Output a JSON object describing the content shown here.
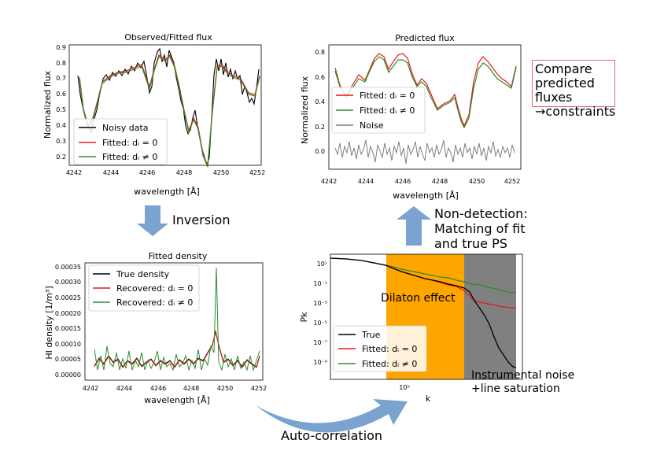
{
  "colors": {
    "noisy": "#000000",
    "fitted0": "#e41a1c",
    "fittedN": "#2e8b2e",
    "noise": "#7f7f7f",
    "orange": "#ffa500",
    "gray": "#808080",
    "arrow": "#7ba3cf"
  },
  "labels": {
    "inversion": "Inversion",
    "nondetect_line1": "Non-detection:",
    "nondetect_line2": "Matching of fit",
    "nondetect_line3": "and true PS",
    "compare_line1": "Compare",
    "compare_line2": "predicted fluxes",
    "compare_line3": "→constraints",
    "autocorr": "Auto-correlation"
  },
  "observed": {
    "title": "Observed/Fitted flux",
    "xlabel": "wavelength [Å]",
    "ylabel": "Normalized flux",
    "xticks": [
      "4242",
      "4244",
      "4246",
      "4248",
      "4250",
      "4252"
    ],
    "yticks": [
      "0.9",
      "0.8",
      "0.7",
      "0.6",
      "0.5",
      "0.4",
      "0.3",
      "0.2"
    ],
    "legend": [
      "Noisy data",
      "Fitted: dᵢ = 0",
      "Fitted: dᵢ ≠ 0"
    ]
  },
  "predicted": {
    "title": "Predicted flux",
    "xlabel": "wavelength [Å]",
    "ylabel": "Normalized flux",
    "xticks": [
      "4242",
      "4244",
      "4246",
      "4248",
      "4250",
      "4252"
    ],
    "yticks": [
      "0.8",
      "0.6",
      "0.4",
      "0.2",
      "0.0"
    ],
    "legend": [
      "Fitted: dᵢ = 0",
      "Fitted: dᵢ ≠ 0",
      "Noise"
    ]
  },
  "density": {
    "title": "Fitted density",
    "xlabel": "wavelength [Å]",
    "ylabel": "HI density [1/m³]",
    "xticks": [
      "4242",
      "4244",
      "4246",
      "4248",
      "4250",
      "4252"
    ],
    "yticks": [
      "0.00035",
      "0.00030",
      "0.00025",
      "0.00020",
      "0.00015",
      "0.00010",
      "0.00005",
      "0.00000"
    ],
    "legend": [
      "True density",
      "Recovered: dᵢ = 0",
      "Recovered: dᵢ ≠ 0"
    ]
  },
  "power": {
    "xlabel": "k",
    "ylabel": "Pk",
    "xticks": [
      "10⁰"
    ],
    "yticks": [
      "10¹",
      "10⁻¹",
      "10⁻³",
      "10⁻⁵",
      "10⁻⁷",
      "10⁻⁹"
    ],
    "legend": [
      "True",
      "Fitted: dᵢ = 0",
      "Fitted: dᵢ ≠ 0"
    ],
    "dilaton": "Dilaton effect",
    "inst1": "Instrumental noise",
    "inst2": "+line saturation"
  }
}
